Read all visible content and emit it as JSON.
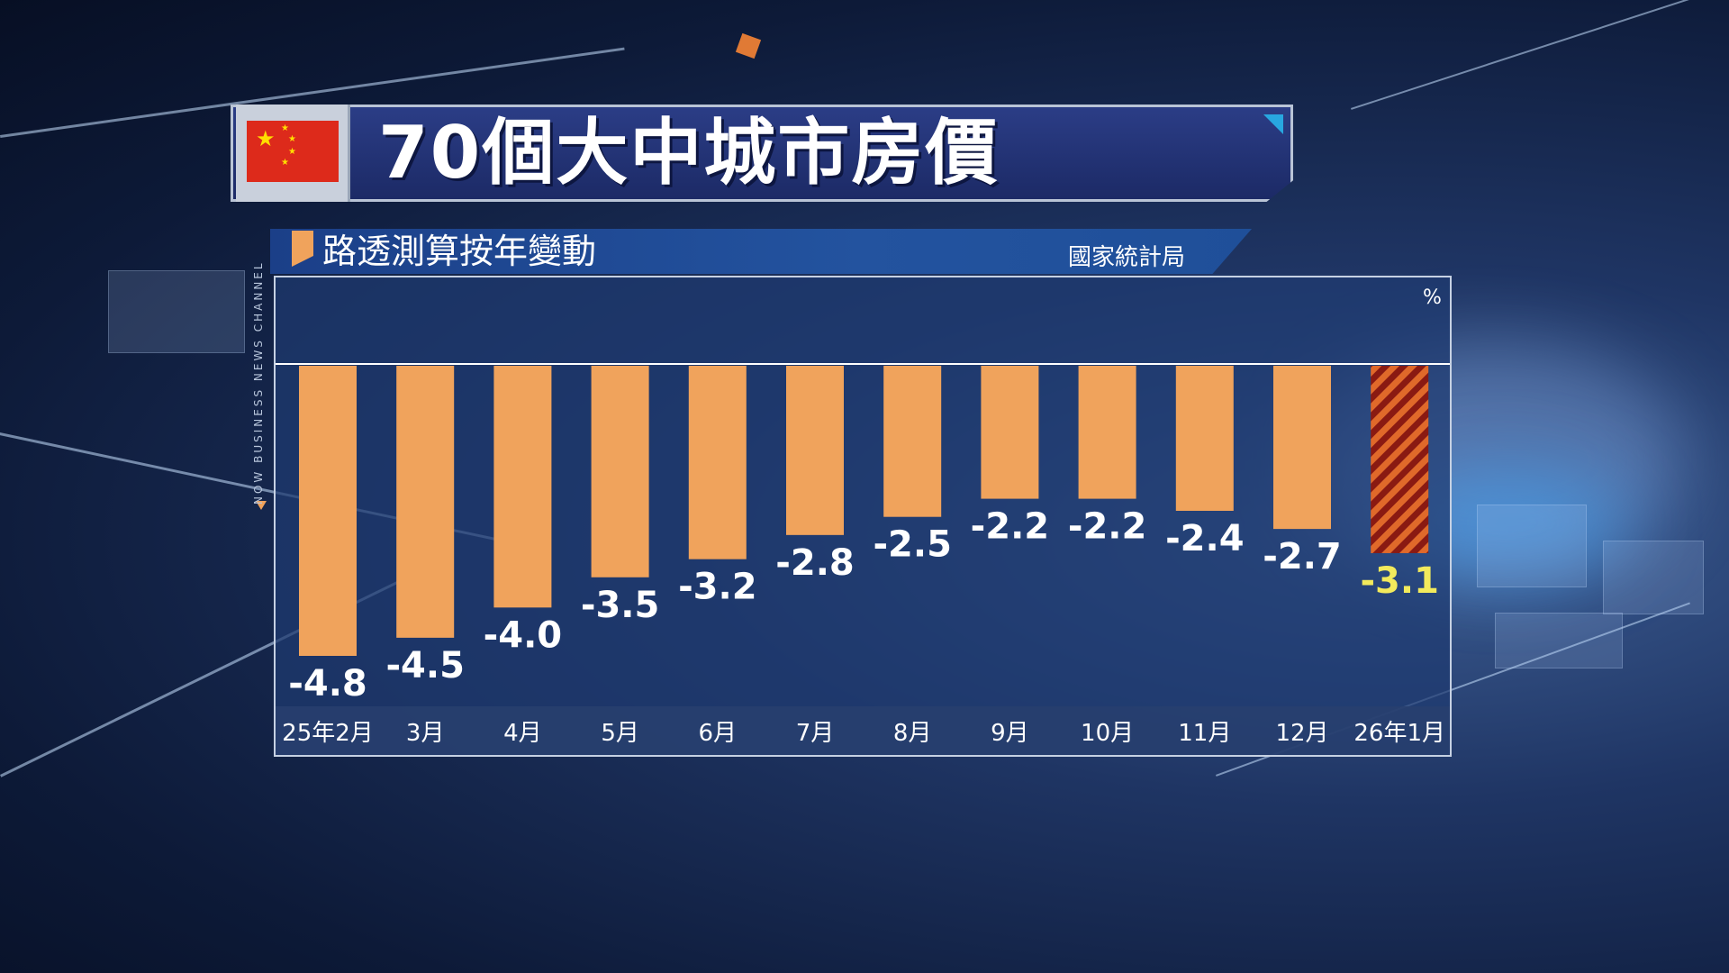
{
  "title": "70個大中城市房價",
  "subtitle": "路透測算按年變動",
  "source": "國家統計局",
  "channel_label": "NOW BUSINESS NEWS CHANNEL",
  "colors": {
    "bar": "#f0a35c",
    "highlight_stripe_a": "#e0692a",
    "highlight_stripe_b": "#8a1a12",
    "label": "#ffffff",
    "highlight_label": "#f2ea5c"
  },
  "chart_data": {
    "type": "bar",
    "title": "70個大中城市房價",
    "subtitle": "路透測算按年變動",
    "unit": "%",
    "categories": [
      "25年2月",
      "3月",
      "4月",
      "5月",
      "6月",
      "7月",
      "8月",
      "9月",
      "10月",
      "11月",
      "12月",
      "26年1月"
    ],
    "values": [
      -4.8,
      -4.5,
      -4.0,
      -3.5,
      -3.2,
      -2.8,
      -2.5,
      -2.2,
      -2.2,
      -2.4,
      -2.7,
      -3.1
    ],
    "highlight_index": 11,
    "ylim": [
      -4.8,
      0
    ],
    "grid": false,
    "legend": "none"
  }
}
